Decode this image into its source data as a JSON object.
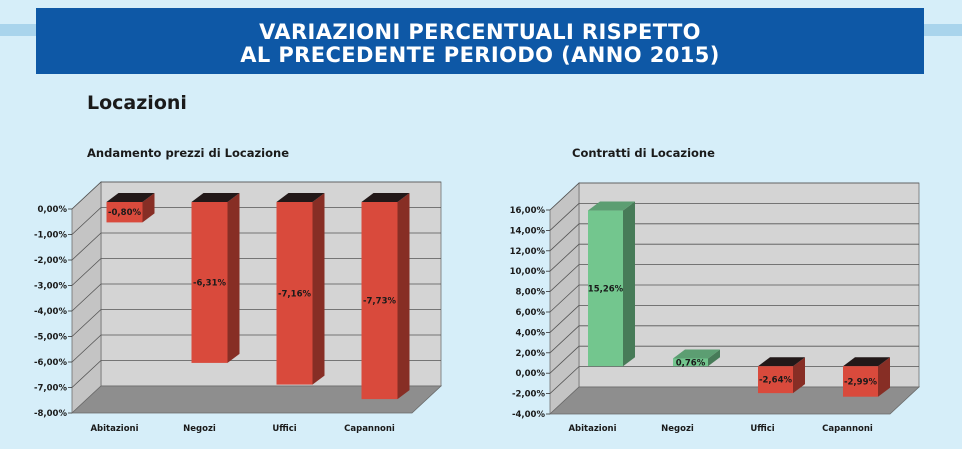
{
  "header": {
    "title_line1": "VARIAZIONI PERCENTUALI RISPETTO",
    "title_line2": "AL PRECEDENTE PERIODO (ANNO 2015)"
  },
  "section": {
    "title": "Locazioni"
  },
  "colors": {
    "banner": "#0e58a6",
    "background": "#d6eef9",
    "negative_bar": "#d94a3c",
    "positive_bar": "#73c68e",
    "wall": "#d4d4d4",
    "floor": "#8e8e8e"
  },
  "chart_data": [
    {
      "type": "bar",
      "title": "Andamento prezzi di Locazione",
      "categories": [
        "Abitazioni",
        "Negozi",
        "Uffici",
        "Capannoni"
      ],
      "values": [
        -0.8,
        -6.31,
        -7.16,
        -7.73
      ],
      "data_labels": [
        "-0,80%",
        "-6,31%",
        "-7,16%",
        "-7,73%"
      ],
      "yticks": [
        0,
        -1,
        -2,
        -3,
        -4,
        -5,
        -6,
        -7,
        -8
      ],
      "ytick_labels": [
        "0,00%",
        "-1,00%",
        "-2,00%",
        "-3,00%",
        "-4,00%",
        "-5,00%",
        "-6,00%",
        "-7,00%",
        "-8,00%"
      ],
      "ylim": [
        -8,
        0
      ],
      "xlabel": "",
      "ylabel": "",
      "grid": true,
      "legend": "none",
      "style": "3d"
    },
    {
      "type": "bar",
      "title": "Contratti di Locazione",
      "categories": [
        "Abitazioni",
        "Negozi",
        "Uffici",
        "Capannoni"
      ],
      "values": [
        15.26,
        0.76,
        -2.64,
        -2.99
      ],
      "data_labels": [
        "15,26%",
        "0,76%",
        "-2,64%",
        "-2,99%"
      ],
      "yticks": [
        16,
        14,
        12,
        10,
        8,
        6,
        4,
        2,
        0,
        -2,
        -4
      ],
      "ytick_labels": [
        "16,00%",
        "14,00%",
        "12,00%",
        "10,00%",
        "8,00%",
        "6,00%",
        "4,00%",
        "2,00%",
        "0,00%",
        "-2,00%",
        "-4,00%"
      ],
      "ylim": [
        -4,
        16
      ],
      "xlabel": "",
      "ylabel": "",
      "grid": true,
      "legend": "none",
      "style": "3d"
    }
  ]
}
